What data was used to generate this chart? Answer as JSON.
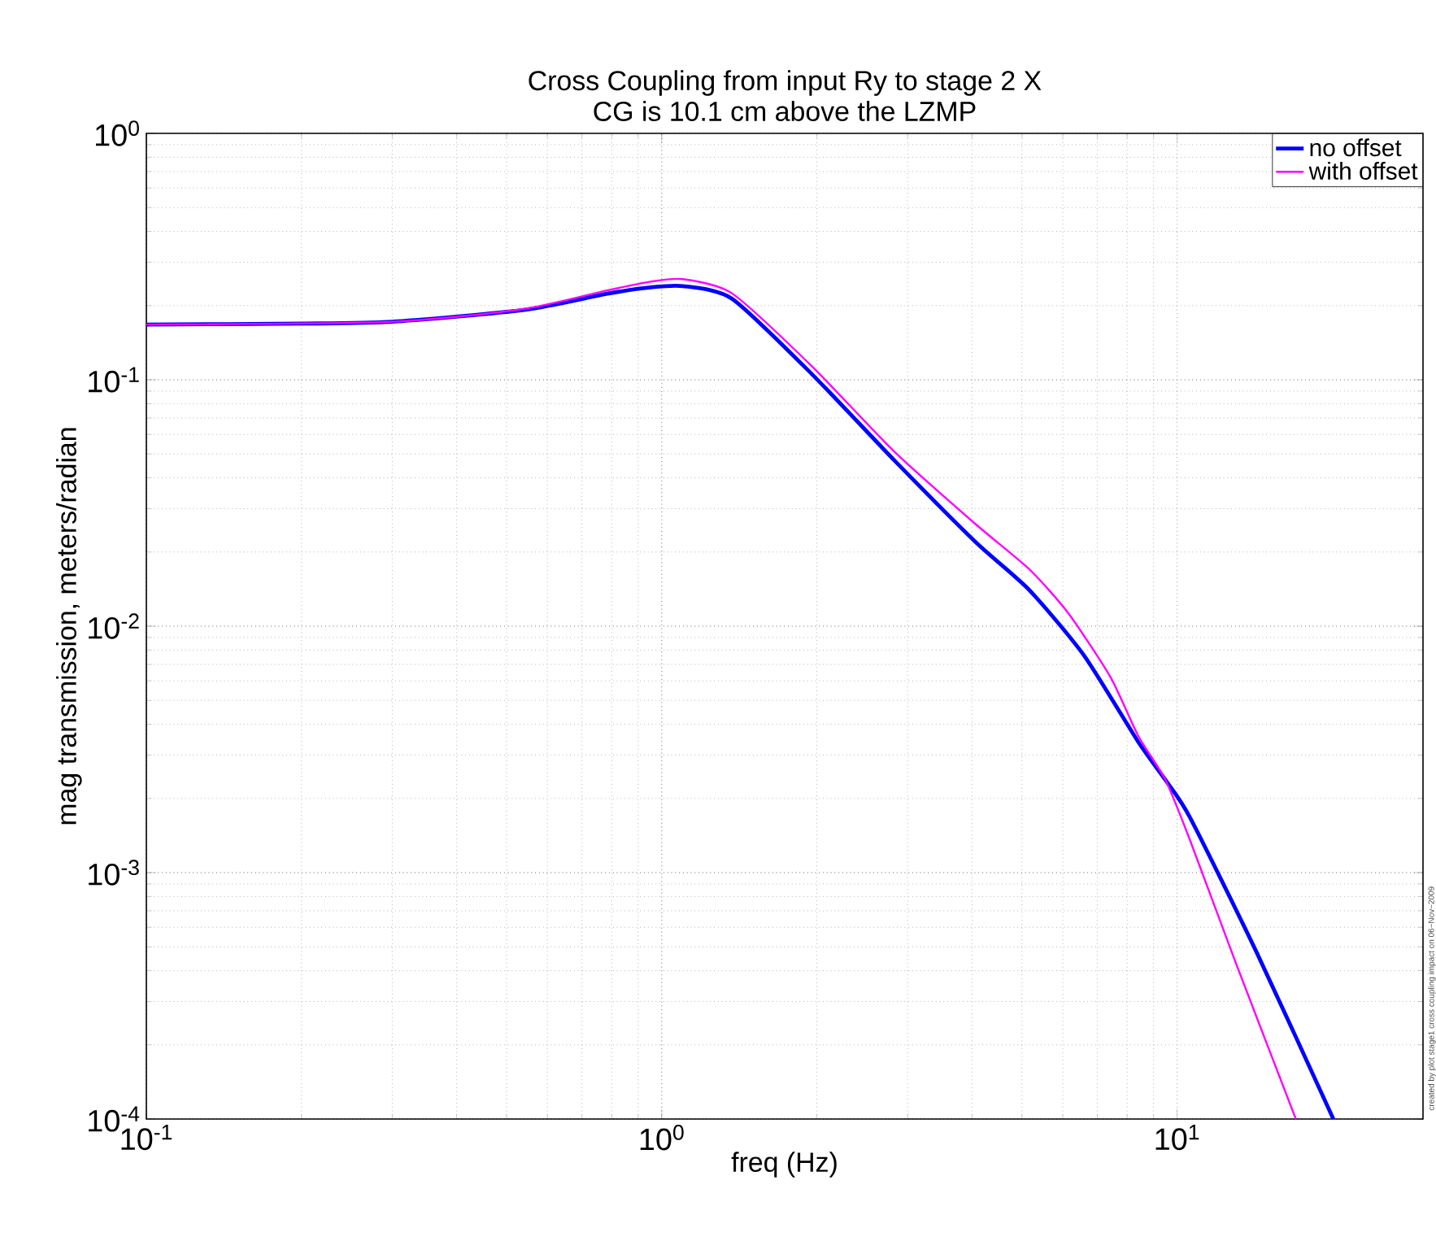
{
  "chart_data": {
    "type": "line",
    "title": "Cross Coupling from input Ry to stage 2 X",
    "subtitle": "CG is 10.1 cm above the LZMP",
    "xlabel": "freq (Hz)",
    "ylabel": "mag transmission, meters/radian",
    "log": "xy",
    "grid": true,
    "legend": "top right",
    "line_style": "solid",
    "xlim": [
      0.1,
      30
    ],
    "ylim": [
      0.0001,
      1
    ],
    "xticks": [
      {
        "value": 0.1,
        "label": "10$^{-1}$"
      },
      {
        "value": 1,
        "label": "10$^{0}$"
      },
      {
        "value": 10,
        "label": "10$^{1}$"
      }
    ],
    "yticks": [
      {
        "value": 0.0001,
        "label": "10$^{-4}$"
      },
      {
        "value": 0.001,
        "label": "10$^{-3}$"
      },
      {
        "value": 0.01,
        "label": "10$^{-2}$"
      },
      {
        "value": 0.1,
        "label": "10$^{-1}$"
      },
      {
        "value": 1,
        "label": "10$^{0}$"
      }
    ],
    "annotations": [
      "created by plot stage1 cross coupling impact on 06−Nov−2009"
    ],
    "series": [
      {
        "name": "no offset",
        "color": "#0000ff",
        "x": [
          0.1,
          0.2,
          0.3,
          0.54,
          0.78,
          0.95,
          1.1,
          1.37,
          1.96,
          2.83,
          4.06,
          5.17,
          6.6,
          8.4,
          9.5,
          10.6,
          14.3,
          20.1
        ],
        "values": [
          0.1675,
          0.169,
          0.172,
          0.192,
          0.223,
          0.237,
          0.24,
          0.213,
          0.105,
          0.047,
          0.022,
          0.014,
          0.0076,
          0.0034,
          0.00237,
          0.00167,
          0.00047,
          0.0001
        ]
      },
      {
        "name": "with offset",
        "color": "#ff00ff",
        "x": [
          0.1,
          0.3,
          0.54,
          0.78,
          0.95,
          1.1,
          1.37,
          1.96,
          2.83,
          4.06,
          5.17,
          6.15,
          7.43,
          8.4,
          9.5,
          10.6,
          13.0,
          17.0
        ],
        "values": [
          0.1675,
          0.172,
          0.194,
          0.23,
          0.25,
          0.256,
          0.224,
          0.113,
          0.051,
          0.026,
          0.017,
          0.0113,
          0.0062,
          0.0036,
          0.00237,
          0.00135,
          0.00043,
          0.0001
        ]
      }
    ]
  }
}
